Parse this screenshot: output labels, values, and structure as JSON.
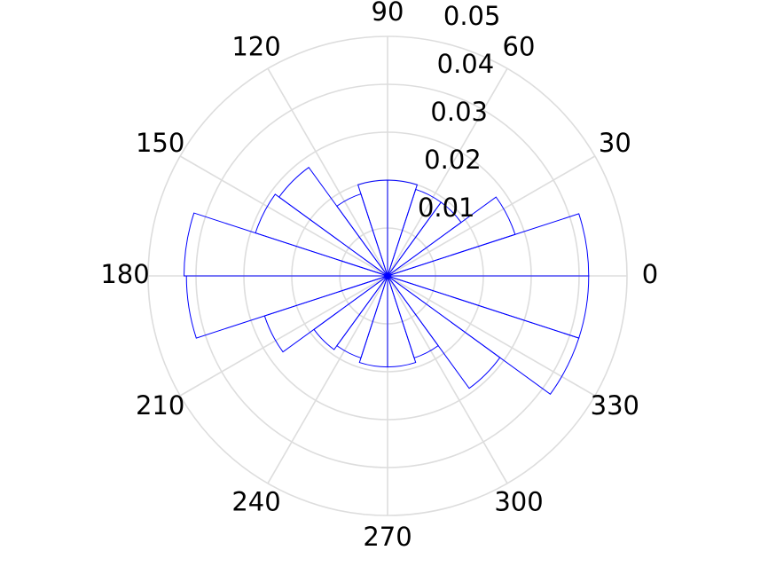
{
  "chart_data": {
    "type": "polar-histogram",
    "bins": [
      0,
      18,
      36,
      54,
      72,
      90,
      108,
      126,
      144,
      162,
      180,
      198,
      216,
      234,
      252,
      270,
      288,
      306,
      324,
      342,
      360
    ],
    "values": [
      0.042,
      0.028,
      0.019,
      0.019,
      0.02,
      0.02,
      0.018,
      0.028,
      0.029,
      0.0425,
      0.042,
      0.027,
      0.019,
      0.018,
      0.019,
      0.019,
      0.018,
      0.029,
      0.042,
      0.042
    ],
    "color": "#0000ff",
    "rlim": [
      0,
      0.05
    ],
    "rticks": [
      0.01,
      0.02,
      0.03,
      0.04,
      0.05
    ],
    "thetaticks": [
      0,
      30,
      60,
      90,
      120,
      150,
      180,
      210,
      240,
      270,
      300,
      330
    ],
    "grid": true
  }
}
